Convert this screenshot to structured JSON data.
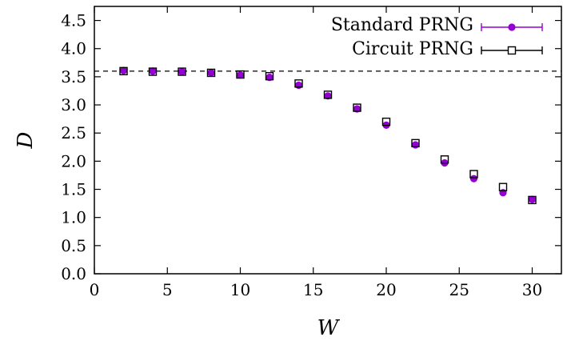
{
  "chart_data": {
    "type": "scatter",
    "title": "",
    "xlabel": "W",
    "ylabel": "D",
    "xlim": [
      0,
      32
    ],
    "ylim": [
      0,
      4.75
    ],
    "xticks": [
      "0",
      "5",
      "10",
      "15",
      "20",
      "25",
      "30"
    ],
    "yticks": [
      "0.0",
      "0.5",
      "1.0",
      "1.5",
      "2.0",
      "2.5",
      "3.0",
      "3.5",
      "4.0",
      "4.5"
    ],
    "grid": false,
    "legend_position": "top-right",
    "reference_line": {
      "y": 3.6,
      "style": "dashed"
    },
    "series": [
      {
        "name": "Standard PRNG",
        "marker": "filled-circle",
        "color": "#9400d3",
        "x": [
          2,
          4,
          6,
          8,
          10,
          12,
          14,
          16,
          18,
          20,
          22,
          24,
          26,
          28,
          30
        ],
        "y": [
          3.61,
          3.6,
          3.59,
          3.57,
          3.53,
          3.49,
          3.35,
          3.16,
          2.93,
          2.64,
          2.29,
          1.97,
          1.69,
          1.44,
          1.32
        ]
      },
      {
        "name": "Circuit PRNG",
        "marker": "open-square",
        "color": "#000000",
        "x": [
          2,
          4,
          6,
          8,
          10,
          12,
          14,
          16,
          18,
          20,
          22,
          24,
          26,
          28,
          30
        ],
        "y": [
          3.6,
          3.59,
          3.59,
          3.57,
          3.54,
          3.51,
          3.38,
          3.18,
          2.95,
          2.7,
          2.32,
          2.03,
          1.77,
          1.54,
          1.31
        ]
      }
    ]
  }
}
